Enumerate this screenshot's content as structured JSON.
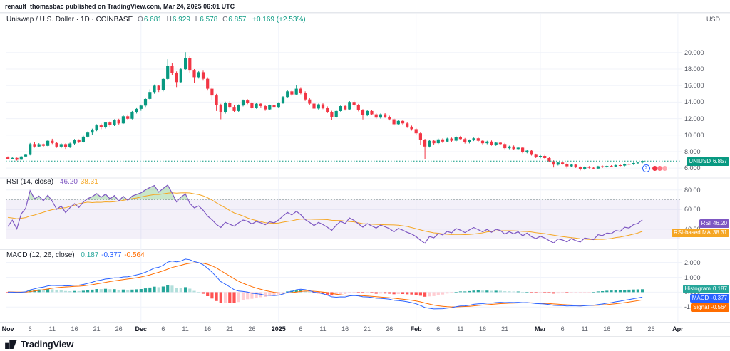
{
  "header": {
    "publish_line": "renault_thomasbac published on TradingView.com, Mar 24, 2025 06:01 UTC"
  },
  "legend": {
    "title": "Uniswap / U.S. Dollar · 1D · COINBASE",
    "o_label": "O",
    "o": "6.681",
    "h_label": "H",
    "h": "6.929",
    "l_label": "L",
    "l": "6.578",
    "c_label": "C",
    "c": "6.857",
    "change": "+0.169 (+2.53%)"
  },
  "rsi_legend": {
    "title": "RSI (14, close)",
    "value": "46.20",
    "ma_value": "38.31"
  },
  "macd_legend": {
    "title": "MACD (12, 26, close)",
    "hist": "0.187",
    "macd": "-0.377",
    "signal": "-0.564"
  },
  "axis": {
    "currency": "USD"
  },
  "badges": {
    "price_label": "UNIUSD",
    "price_value": "6.857",
    "rsi_label": "RSI",
    "rsi_value": "46.20",
    "ma_label": "RSI-based MA",
    "ma_value": "38.31",
    "hist_label": "Histogram",
    "hist_value": "0.187",
    "macd_label": "MACD",
    "macd_value": "-0.377",
    "signal_label": "Signal",
    "signal_value": "-0.564"
  },
  "reactions": {
    "count": "2"
  },
  "footer": {
    "brand": "TradingView"
  },
  "colors": {
    "up": "#089981",
    "down": "#f23645",
    "rsi": "#7e57c2",
    "rsiMa": "#f5a623",
    "rsiBand": "rgba(126,87,194,0.09)",
    "rsiOverbought": "rgba(76,175,80,0.30)",
    "macd": "#2962ff",
    "signal": "#ff6d00",
    "histUp": "#26a69a",
    "histUpFade": "#b2dfdb",
    "histDown": "#ff5252",
    "histDownFade": "#ffcdd2",
    "grid": "#f0f3fa",
    "border": "#e4e7ec",
    "dashed": "#9aa0aa",
    "text": "#131722"
  },
  "chart_data": {
    "type": "candlestick",
    "symbol": "UNIUSD",
    "exchange": "COINBASE",
    "interval": "1D",
    "title": "Uniswap / U.S. Dollar",
    "current_price": 6.857,
    "total_slots": 152,
    "price_axis": {
      "min": 5.15,
      "max": 22.4,
      "gridlines": [
        20,
        18,
        16,
        14,
        12,
        10,
        8,
        6
      ],
      "tick_labels": [
        "20.000",
        "18.000",
        "16.000",
        "14.000",
        "12.000",
        "10.000",
        "8.000",
        "6.000"
      ]
    },
    "rsi_axis": {
      "min": 24,
      "max": 90,
      "gridlines": [
        80,
        60,
        40
      ],
      "tick_labels": [
        "80.00",
        "60.00",
        "40.00"
      ],
      "band": [
        70,
        30
      ]
    },
    "macd_axis": {
      "min": -1.8,
      "max": 2.6,
      "gridlines": [
        2,
        1,
        0,
        -1
      ],
      "tick_labels": [
        "2.000",
        "1.000",
        "0.000",
        "-1.000"
      ]
    },
    "indicators": {
      "rsi": {
        "period": 14,
        "ma_period": 14,
        "last": 46.2,
        "ma_last": 38.31
      },
      "macd": {
        "fast": 12,
        "slow": 26,
        "signal": 9,
        "last": -0.377,
        "signal_last": -0.564,
        "hist_last": 0.187
      }
    },
    "x_labels": [
      {
        "slot": 0,
        "text": "Nov",
        "major": true
      },
      {
        "slot": 5,
        "text": "6"
      },
      {
        "slot": 10,
        "text": "11"
      },
      {
        "slot": 15,
        "text": "16"
      },
      {
        "slot": 20,
        "text": "21"
      },
      {
        "slot": 25,
        "text": "26"
      },
      {
        "slot": 30,
        "text": "Dec",
        "major": true
      },
      {
        "slot": 35,
        "text": "6"
      },
      {
        "slot": 40,
        "text": "11"
      },
      {
        "slot": 45,
        "text": "16"
      },
      {
        "slot": 50,
        "text": "21"
      },
      {
        "slot": 55,
        "text": "26"
      },
      {
        "slot": 61,
        "text": "2025",
        "major": true
      },
      {
        "slot": 66,
        "text": "6"
      },
      {
        "slot": 71,
        "text": "11"
      },
      {
        "slot": 76,
        "text": "16"
      },
      {
        "slot": 81,
        "text": "21"
      },
      {
        "slot": 86,
        "text": "26"
      },
      {
        "slot": 92,
        "text": "Feb",
        "major": true
      },
      {
        "slot": 97,
        "text": "6"
      },
      {
        "slot": 102,
        "text": "11"
      },
      {
        "slot": 107,
        "text": "16"
      },
      {
        "slot": 112,
        "text": "21"
      },
      {
        "slot": 120,
        "text": "Mar",
        "major": true
      },
      {
        "slot": 125,
        "text": "6"
      },
      {
        "slot": 130,
        "text": "11"
      },
      {
        "slot": 135,
        "text": "16"
      },
      {
        "slot": 140,
        "text": "21"
      },
      {
        "slot": 145,
        "text": "26"
      },
      {
        "slot": 151,
        "text": "Apr",
        "major": true
      }
    ],
    "warmup_closes": [
      7.18,
      7.22,
      7.15,
      7.28,
      7.24,
      7.32,
      7.2,
      7.12,
      7.18,
      7.26,
      7.38,
      7.33,
      7.24,
      7.3,
      7.42,
      7.38,
      7.3,
      7.34,
      7.26,
      7.2,
      7.28,
      7.34,
      7.4,
      7.32,
      7.26,
      7.34,
      7.3,
      7.24,
      7.31,
      7.3
    ],
    "candles": [
      [
        7.3,
        7.42,
        7.08,
        7.12
      ],
      [
        7.12,
        7.3,
        7.05,
        7.24
      ],
      [
        7.24,
        7.28,
        6.92,
        7.02
      ],
      [
        7.02,
        7.48,
        6.98,
        7.41
      ],
      [
        7.41,
        7.7,
        7.32,
        7.62
      ],
      [
        7.62,
        9.05,
        7.55,
        8.92
      ],
      [
        8.92,
        9.18,
        8.48,
        8.62
      ],
      [
        8.62,
        9.02,
        8.51,
        8.9
      ],
      [
        8.9,
        8.98,
        8.56,
        8.71
      ],
      [
        8.71,
        9.42,
        8.65,
        9.32
      ],
      [
        9.32,
        9.56,
        8.92,
        9.04
      ],
      [
        9.04,
        9.14,
        8.46,
        8.61
      ],
      [
        8.61,
        9.02,
        8.42,
        8.91
      ],
      [
        8.91,
        9.0,
        8.33,
        8.52
      ],
      [
        8.52,
        9.08,
        8.44,
        8.98
      ],
      [
        8.98,
        9.52,
        8.86,
        9.41
      ],
      [
        9.41,
        9.5,
        9.05,
        9.18
      ],
      [
        9.18,
        9.92,
        9.1,
        9.82
      ],
      [
        9.82,
        10.45,
        9.7,
        10.31
      ],
      [
        10.31,
        10.78,
        10.02,
        10.62
      ],
      [
        10.62,
        11.32,
        10.48,
        11.18
      ],
      [
        11.18,
        11.4,
        10.72,
        10.95
      ],
      [
        10.95,
        11.62,
        10.8,
        11.52
      ],
      [
        11.52,
        11.7,
        11.02,
        11.21
      ],
      [
        11.21,
        11.92,
        11.1,
        11.8
      ],
      [
        11.8,
        11.98,
        11.28,
        11.42
      ],
      [
        11.42,
        12.42,
        11.35,
        12.28
      ],
      [
        12.28,
        12.5,
        11.82,
        11.98
      ],
      [
        11.98,
        12.92,
        11.9,
        12.8
      ],
      [
        12.8,
        13.35,
        12.62,
        13.18
      ],
      [
        13.18,
        13.7,
        12.95,
        13.58
      ],
      [
        13.58,
        14.52,
        13.4,
        14.38
      ],
      [
        14.38,
        15.55,
        14.22,
        15.22
      ],
      [
        15.22,
        16.12,
        15.02,
        15.98
      ],
      [
        15.98,
        16.1,
        15.22,
        15.42
      ],
      [
        15.42,
        16.92,
        15.3,
        16.8
      ],
      [
        16.8,
        19.2,
        16.65,
        18.42
      ],
      [
        18.42,
        18.7,
        17.3,
        17.55
      ],
      [
        17.55,
        17.72,
        15.82,
        16.42
      ],
      [
        16.42,
        18.15,
        16.3,
        17.98
      ],
      [
        17.98,
        20.05,
        17.85,
        19.32
      ],
      [
        19.32,
        19.6,
        17.55,
        17.82
      ],
      [
        17.82,
        18.0,
        16.32,
        17.02
      ],
      [
        17.02,
        17.75,
        16.85,
        17.62
      ],
      [
        17.62,
        17.8,
        16.6,
        16.82
      ],
      [
        16.82,
        17.0,
        15.4,
        15.62
      ],
      [
        15.62,
        15.8,
        14.22,
        14.8
      ],
      [
        14.8,
        15.0,
        12.92,
        13.62
      ],
      [
        13.62,
        13.8,
        11.92,
        12.8
      ],
      [
        12.8,
        14.05,
        12.6,
        13.92
      ],
      [
        13.92,
        14.1,
        13.22,
        13.42
      ],
      [
        13.42,
        13.6,
        12.75,
        12.92
      ],
      [
        12.92,
        13.72,
        12.8,
        13.6
      ],
      [
        13.6,
        14.32,
        13.48,
        14.2
      ],
      [
        14.2,
        14.35,
        13.75,
        13.92
      ],
      [
        13.92,
        14.05,
        13.15,
        13.32
      ],
      [
        13.32,
        13.92,
        13.2,
        13.8
      ],
      [
        13.8,
        13.95,
        13.35,
        13.52
      ],
      [
        13.52,
        13.65,
        12.95,
        13.12
      ],
      [
        13.12,
        13.7,
        13.02,
        13.62
      ],
      [
        13.62,
        13.78,
        13.25,
        13.42
      ],
      [
        13.42,
        13.98,
        13.3,
        13.9
      ],
      [
        13.9,
        14.72,
        13.8,
        14.62
      ],
      [
        14.62,
        15.42,
        14.5,
        15.3
      ],
      [
        15.3,
        15.48,
        14.72,
        14.92
      ],
      [
        14.92,
        16.02,
        14.85,
        15.62
      ],
      [
        15.62,
        15.8,
        14.95,
        15.12
      ],
      [
        15.12,
        15.3,
        14.15,
        14.32
      ],
      [
        14.32,
        14.5,
        13.62,
        13.82
      ],
      [
        13.82,
        13.95,
        13.02,
        13.22
      ],
      [
        13.22,
        13.82,
        13.1,
        13.72
      ],
      [
        13.72,
        13.85,
        13.15,
        13.32
      ],
      [
        13.32,
        13.48,
        12.65,
        12.82
      ],
      [
        12.82,
        12.95,
        11.82,
        12.22
      ],
      [
        12.22,
        13.0,
        12.1,
        12.92
      ],
      [
        12.92,
        13.62,
        12.8,
        13.52
      ],
      [
        13.52,
        13.68,
        12.98,
        13.12
      ],
      [
        13.12,
        14.12,
        13.0,
        14.02
      ],
      [
        14.02,
        14.18,
        13.48,
        13.62
      ],
      [
        13.62,
        13.78,
        12.88,
        13.02
      ],
      [
        13.02,
        13.15,
        11.9,
        12.42
      ],
      [
        12.42,
        13.0,
        12.3,
        12.92
      ],
      [
        12.92,
        13.05,
        12.4,
        12.52
      ],
      [
        12.52,
        12.65,
        11.98,
        12.12
      ],
      [
        12.12,
        12.62,
        12.0,
        12.52
      ],
      [
        12.52,
        12.65,
        12.08,
        12.22
      ],
      [
        12.22,
        12.35,
        11.78,
        11.92
      ],
      [
        11.92,
        12.05,
        11.15,
        11.32
      ],
      [
        11.32,
        11.82,
        11.2,
        11.72
      ],
      [
        11.72,
        11.85,
        11.28,
        11.42
      ],
      [
        11.42,
        11.55,
        10.88,
        11.02
      ],
      [
        11.02,
        11.15,
        10.55,
        10.72
      ],
      [
        10.72,
        10.85,
        10.05,
        10.22
      ],
      [
        10.22,
        10.35,
        8.82,
        9.42
      ],
      [
        9.42,
        9.55,
        7.12,
        8.62
      ],
      [
        8.62,
        9.42,
        8.5,
        9.32
      ],
      [
        9.32,
        9.45,
        8.85,
        9.02
      ],
      [
        9.02,
        9.58,
        8.92,
        9.48
      ],
      [
        9.48,
        9.6,
        9.05,
        9.22
      ],
      [
        9.22,
        9.68,
        9.12,
        9.58
      ],
      [
        9.58,
        9.7,
        9.18,
        9.32
      ],
      [
        9.32,
        9.88,
        9.22,
        9.78
      ],
      [
        9.78,
        9.9,
        9.4,
        9.52
      ],
      [
        9.52,
        9.65,
        8.98,
        9.12
      ],
      [
        9.12,
        9.48,
        9.0,
        9.38
      ],
      [
        9.38,
        9.7,
        9.28,
        9.62
      ],
      [
        9.62,
        9.75,
        9.2,
        9.32
      ],
      [
        9.32,
        9.45,
        8.88,
        9.02
      ],
      [
        9.02,
        9.32,
        8.9,
        9.22
      ],
      [
        9.22,
        9.35,
        8.72,
        8.82
      ],
      [
        8.82,
        9.18,
        8.7,
        9.08
      ],
      [
        9.08,
        9.2,
        8.78,
        8.92
      ],
      [
        8.92,
        9.05,
        8.3,
        8.42
      ],
      [
        8.42,
        8.72,
        8.3,
        8.62
      ],
      [
        8.62,
        8.75,
        8.2,
        8.32
      ],
      [
        8.32,
        8.58,
        8.2,
        8.48
      ],
      [
        8.48,
        8.6,
        7.8,
        7.92
      ],
      [
        7.92,
        8.22,
        7.8,
        8.12
      ],
      [
        8.12,
        8.25,
        7.52,
        7.62
      ],
      [
        7.62,
        7.75,
        7.22,
        7.32
      ],
      [
        7.32,
        7.58,
        7.2,
        7.48
      ],
      [
        7.48,
        7.6,
        7.1,
        7.22
      ],
      [
        7.22,
        7.35,
        6.72,
        6.82
      ],
      [
        6.82,
        6.95,
        6.08,
        6.42
      ],
      [
        6.42,
        6.78,
        6.32,
        6.68
      ],
      [
        6.68,
        6.8,
        6.42,
        6.52
      ],
      [
        6.52,
        6.65,
        5.98,
        6.22
      ],
      [
        6.22,
        6.48,
        6.12,
        6.42
      ],
      [
        6.42,
        6.52,
        6.02,
        6.12
      ],
      [
        6.12,
        6.22,
        5.72,
        5.92
      ],
      [
        5.92,
        6.22,
        5.78,
        6.15
      ],
      [
        6.15,
        6.25,
        5.95,
        6.05
      ],
      [
        6.05,
        6.15,
        5.85,
        5.95
      ],
      [
        5.95,
        6.28,
        5.9,
        6.22
      ],
      [
        6.22,
        6.32,
        6.02,
        6.12
      ],
      [
        6.12,
        6.32,
        6.05,
        6.26
      ],
      [
        6.26,
        6.35,
        6.1,
        6.2
      ],
      [
        6.2,
        6.42,
        6.12,
        6.36
      ],
      [
        6.36,
        6.45,
        6.2,
        6.3
      ],
      [
        6.3,
        6.55,
        6.22,
        6.5
      ],
      [
        6.5,
        6.6,
        6.35,
        6.45
      ],
      [
        6.45,
        6.68,
        6.38,
        6.62
      ],
      [
        6.62,
        6.75,
        6.5,
        6.68
      ],
      [
        6.681,
        6.929,
        6.578,
        6.857
      ]
    ]
  }
}
